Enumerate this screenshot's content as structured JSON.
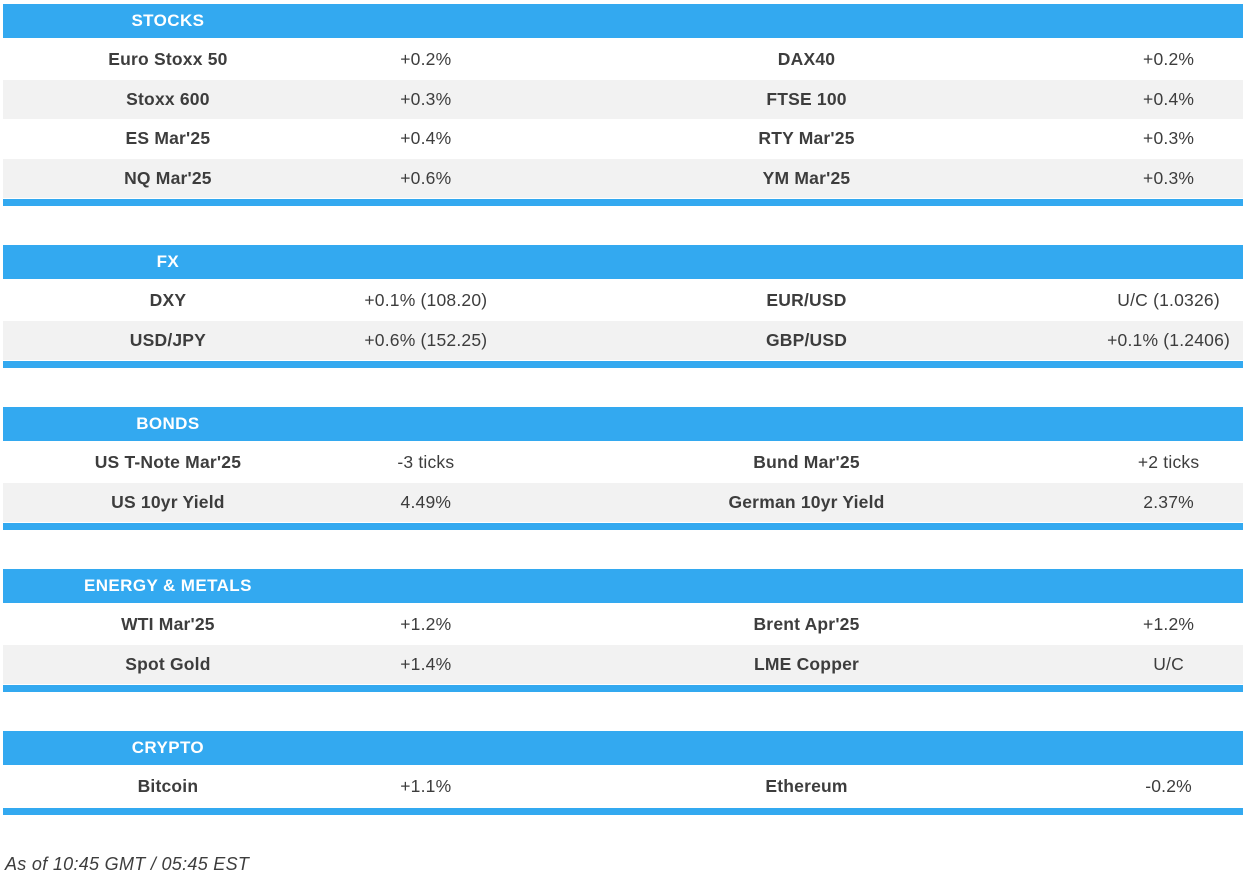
{
  "colors": {
    "accent": "#33A9F0",
    "row_alt": "#F2F2F2",
    "text": "#3D3D3D",
    "header_text": "#FFFFFF"
  },
  "table": {
    "sections": [
      {
        "title": "STOCKS",
        "rows": [
          [
            "Euro Stoxx 50",
            "+0.2%",
            "DAX40",
            "+0.2%"
          ],
          [
            "Stoxx 600",
            "+0.3%",
            "FTSE 100",
            "+0.4%"
          ],
          [
            "ES Mar'25",
            "+0.4%",
            "RTY Mar'25",
            "+0.3%"
          ],
          [
            "NQ Mar'25",
            "+0.6%",
            "YM Mar'25",
            "+0.3%"
          ]
        ]
      },
      {
        "title": "FX",
        "rows": [
          [
            "DXY",
            "+0.1% (108.20)",
            "EUR/USD",
            "U/C (1.0326)"
          ],
          [
            "USD/JPY",
            "+0.6% (152.25)",
            "GBP/USD",
            "+0.1% (1.2406)"
          ]
        ]
      },
      {
        "title": "BONDS",
        "rows": [
          [
            "US T-Note Mar'25",
            "-3 ticks",
            "Bund Mar'25",
            "+2 ticks"
          ],
          [
            "US 10yr Yield",
            "4.49%",
            "German 10yr Yield",
            "2.37%"
          ]
        ]
      },
      {
        "title": "ENERGY & METALS",
        "rows": [
          [
            "WTI Mar'25",
            "+1.2%",
            "Brent Apr'25",
            "+1.2%"
          ],
          [
            "Spot Gold",
            "+1.4%",
            "LME Copper",
            "U/C"
          ]
        ]
      },
      {
        "title": "CRYPTO",
        "rows": [
          [
            "Bitcoin",
            "+1.1%",
            "Ethereum",
            "-0.2%"
          ]
        ]
      }
    ]
  },
  "footer": {
    "as_of": "As of 10:45 GMT / 05:45 EST"
  }
}
